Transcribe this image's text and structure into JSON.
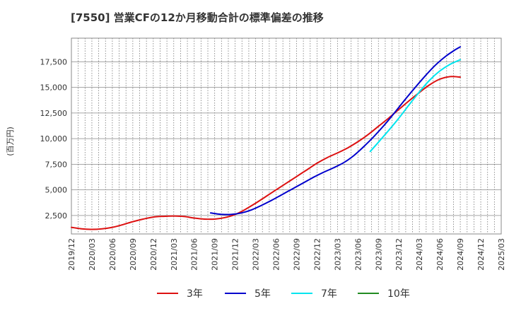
{
  "chart_data": {
    "type": "line",
    "title": "[7550]  営業CFの12か月移動合計の標準偏差の推移",
    "xlabel": "",
    "ylabel": "(百万円)",
    "ylim": [
      700,
      19800
    ],
    "yticks": [
      2500,
      5000,
      7500,
      10000,
      12500,
      15000,
      17500
    ],
    "ytick_labels": [
      "2,500",
      "5,000",
      "7,500",
      "10,000",
      "12,500",
      "15,000",
      "17,500"
    ],
    "x_categories": [
      "2019/12",
      "2020/03",
      "2020/06",
      "2020/09",
      "2020/12",
      "2021/03",
      "2021/06",
      "2021/09",
      "2021/12",
      "2022/03",
      "2022/06",
      "2022/09",
      "2022/12",
      "2023/03",
      "2023/06",
      "2023/09",
      "2023/12",
      "2024/03",
      "2024/06",
      "2024/09",
      "2024/12",
      "2025/03"
    ],
    "grid": true,
    "legend_position": "bottom",
    "series": [
      {
        "name": "3年",
        "color": "#dd1111",
        "points": [
          [
            0,
            1350
          ],
          [
            0.5,
            1200
          ],
          [
            1,
            1150
          ],
          [
            1.5,
            1200
          ],
          [
            2,
            1350
          ],
          [
            2.5,
            1600
          ],
          [
            3,
            1900
          ],
          [
            3.5,
            2150
          ],
          [
            4,
            2350
          ],
          [
            4.5,
            2420
          ],
          [
            5,
            2450
          ],
          [
            5.5,
            2400
          ],
          [
            6,
            2250
          ],
          [
            6.5,
            2150
          ],
          [
            7,
            2150
          ],
          [
            7.5,
            2300
          ],
          [
            8,
            2600
          ],
          [
            8.5,
            3100
          ],
          [
            9,
            3700
          ],
          [
            9.5,
            4350
          ],
          [
            10,
            5000
          ],
          [
            10.5,
            5650
          ],
          [
            11,
            6300
          ],
          [
            11.5,
            6950
          ],
          [
            12,
            7600
          ],
          [
            12.5,
            8150
          ],
          [
            13,
            8600
          ],
          [
            13.5,
            9100
          ],
          [
            14,
            9700
          ],
          [
            14.5,
            10400
          ],
          [
            15,
            11200
          ],
          [
            15.5,
            12000
          ],
          [
            16,
            12850
          ],
          [
            16.5,
            13700
          ],
          [
            17,
            14500
          ],
          [
            17.5,
            15250
          ],
          [
            18,
            15800
          ],
          [
            18.5,
            16050
          ],
          [
            19,
            16000
          ]
        ]
      },
      {
        "name": "5年",
        "color": "#0000cc",
        "points": [
          [
            6.8,
            2750
          ],
          [
            7.3,
            2620
          ],
          [
            7.8,
            2600
          ],
          [
            8.3,
            2750
          ],
          [
            8.8,
            3050
          ],
          [
            9.3,
            3500
          ],
          [
            9.8,
            4000
          ],
          [
            10.3,
            4550
          ],
          [
            10.8,
            5100
          ],
          [
            11.3,
            5650
          ],
          [
            11.8,
            6200
          ],
          [
            12.3,
            6700
          ],
          [
            12.8,
            7150
          ],
          [
            13.3,
            7650
          ],
          [
            13.8,
            8350
          ],
          [
            14.3,
            9250
          ],
          [
            14.8,
            10250
          ],
          [
            15.3,
            11350
          ],
          [
            15.8,
            12550
          ],
          [
            16.3,
            13800
          ],
          [
            16.8,
            15000
          ],
          [
            17.3,
            16150
          ],
          [
            17.8,
            17200
          ],
          [
            18.3,
            18050
          ],
          [
            18.7,
            18600
          ],
          [
            19,
            18950
          ]
        ]
      },
      {
        "name": "7年",
        "color": "#00e5ee",
        "points": [
          [
            14.6,
            8750
          ],
          [
            15,
            9650
          ],
          [
            15.5,
            10800
          ],
          [
            16,
            12000
          ],
          [
            16.5,
            13300
          ],
          [
            17,
            14550
          ],
          [
            17.5,
            15700
          ],
          [
            18,
            16600
          ],
          [
            18.5,
            17250
          ],
          [
            19,
            17700
          ]
        ]
      },
      {
        "name": "10年",
        "color": "#228b22",
        "points": []
      }
    ]
  }
}
